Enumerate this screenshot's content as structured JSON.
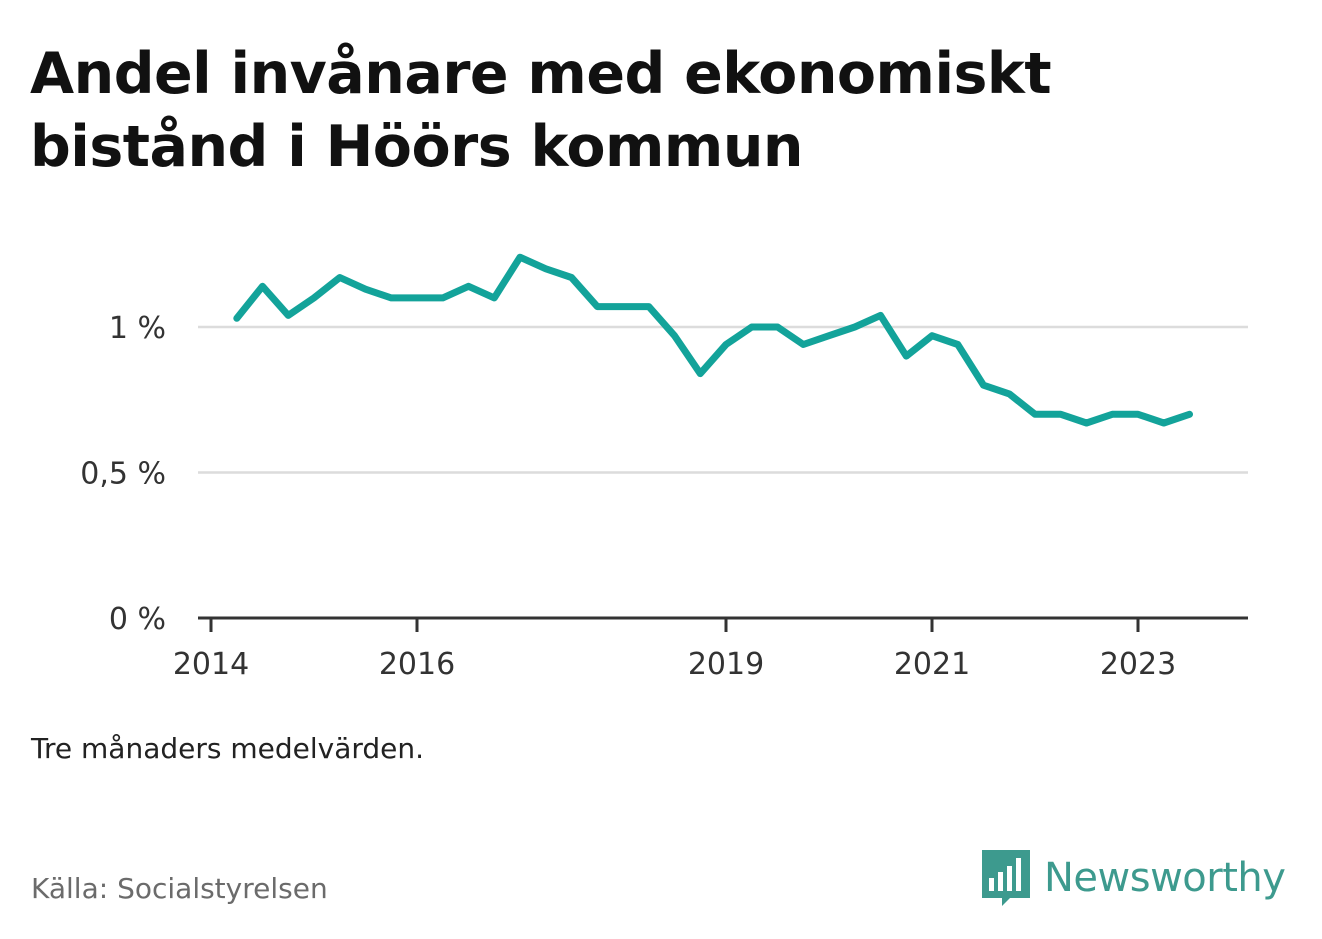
{
  "title": "Andel invånare med ekonomiskt bistånd i Höörs kommun",
  "note": "Tre månaders medelvärden.",
  "source": "Källa: Socialstyrelsen",
  "brand": {
    "name": "Newsworthy",
    "icon": "bar-chart-speech-bubble-icon",
    "color": "#3d9a8e"
  },
  "chart_data": {
    "type": "line",
    "title": "Andel invånare med ekonomiskt bistånd i Höörs kommun",
    "xlabel": "",
    "ylabel": "",
    "x_ticks": [
      "2014",
      "2016",
      "2019",
      "2021",
      "2023"
    ],
    "y_ticks": [
      "0 %",
      "0,5 %",
      "1 %"
    ],
    "ylim": [
      0,
      1.2
    ],
    "grid": "horizontal",
    "line_color": "#13a39a",
    "series": [
      {
        "x": [
          "2014-04",
          "2014-07",
          "2014-10",
          "2015-01",
          "2015-04",
          "2015-07",
          "2015-10",
          "2016-01",
          "2016-04",
          "2016-07",
          "2016-10",
          "2017-01",
          "2017-04",
          "2017-07",
          "2017-10",
          "2018-01",
          "2018-04",
          "2018-07",
          "2018-10",
          "2019-01",
          "2019-04",
          "2019-07",
          "2019-10",
          "2020-01",
          "2020-04",
          "2020-07",
          "2020-10",
          "2021-01",
          "2021-04",
          "2021-07",
          "2021-10",
          "2022-01",
          "2022-04",
          "2022-07",
          "2022-10",
          "2023-01",
          "2023-04",
          "2023-07"
        ],
        "values": [
          1.03,
          1.14,
          1.04,
          1.1,
          1.17,
          1.13,
          1.1,
          1.1,
          1.1,
          1.14,
          1.1,
          1.24,
          1.2,
          1.17,
          1.07,
          1.07,
          1.07,
          0.97,
          0.84,
          0.94,
          1.0,
          1.0,
          0.94,
          0.97,
          1.0,
          1.04,
          0.9,
          0.97,
          0.94,
          0.8,
          0.77,
          0.7,
          0.7,
          0.67,
          0.7,
          0.7,
          0.67,
          0.7
        ]
      }
    ]
  }
}
